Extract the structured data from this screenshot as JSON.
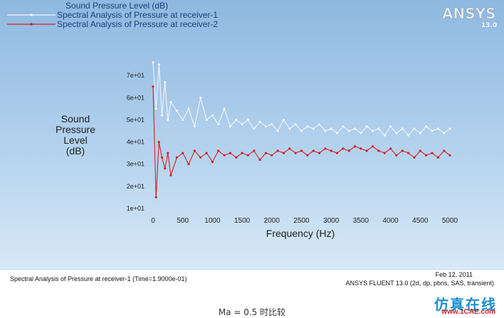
{
  "logo": {
    "brand": "ANSYS",
    "version": "13.0"
  },
  "chart_data": {
    "type": "line",
    "title": "Sound Pressure Level (dB)",
    "xlabel": "Frequency (Hz)",
    "ylabel": "Sound Pressure Level (dB)",
    "xlim": [
      0,
      5000
    ],
    "ylim": [
      10,
      80
    ],
    "xticks": [
      0,
      500,
      1000,
      1500,
      2000,
      2500,
      3000,
      3500,
      4000,
      4500,
      5000
    ],
    "yticks": [
      10,
      20,
      30,
      40,
      50,
      60,
      70
    ],
    "ytick_labels": [
      "1e+01",
      "2e+01",
      "3e+01",
      "4e+01",
      "5e+01",
      "6e+01",
      "7e+01"
    ],
    "legend_position": "top-left",
    "background": "#a6c8e8",
    "series": [
      {
        "name": "Spectral Analysis of Pressure at receiver-1",
        "color": "#f4f4f4",
        "x": [
          0,
          50,
          100,
          150,
          200,
          250,
          300,
          400,
          500,
          600,
          700,
          800,
          900,
          1000,
          1100,
          1200,
          1300,
          1400,
          1500,
          1600,
          1700,
          1800,
          1900,
          2000,
          2100,
          2200,
          2300,
          2400,
          2500,
          2600,
          2700,
          2800,
          2900,
          3000,
          3100,
          3200,
          3300,
          3400,
          3500,
          3600,
          3700,
          3800,
          3900,
          4000,
          4100,
          4200,
          4300,
          4400,
          4500,
          4600,
          4700,
          4800,
          4900,
          5000
        ],
        "values": [
          76,
          55,
          75,
          52,
          67,
          50,
          58,
          54,
          50,
          55,
          47,
          60,
          50,
          52,
          48,
          55,
          47,
          50,
          48,
          50,
          46,
          49,
          47,
          48,
          45,
          50,
          46,
          48,
          45,
          47,
          46,
          48,
          45,
          46,
          44,
          47,
          45,
          46,
          44,
          47,
          45,
          46,
          43,
          47,
          44,
          46,
          43,
          46,
          44,
          47,
          45,
          46,
          44,
          46
        ]
      },
      {
        "name": "Spectral Analysis of Pressure at receiver-2",
        "color": "#d42020",
        "x": [
          0,
          50,
          100,
          150,
          200,
          250,
          300,
          400,
          500,
          600,
          700,
          800,
          900,
          1000,
          1100,
          1200,
          1300,
          1400,
          1500,
          1600,
          1700,
          1800,
          1900,
          2000,
          2100,
          2200,
          2300,
          2400,
          2500,
          2600,
          2700,
          2800,
          2900,
          3000,
          3100,
          3200,
          3300,
          3400,
          3500,
          3600,
          3700,
          3800,
          3900,
          4000,
          4100,
          4200,
          4300,
          4400,
          4500,
          4600,
          4700,
          4800,
          4900,
          5000
        ],
        "values": [
          65,
          15,
          40,
          33,
          28,
          35,
          25,
          33,
          35,
          30,
          36,
          33,
          35,
          31,
          36,
          34,
          35,
          33,
          35,
          34,
          36,
          32,
          35,
          34,
          36,
          35,
          37,
          35,
          36,
          34,
          36,
          35,
          37,
          36,
          35,
          37,
          36,
          38,
          37,
          36,
          38,
          36,
          35,
          37,
          34,
          36,
          35,
          33,
          36,
          34,
          35,
          33,
          36,
          34
        ]
      }
    ]
  },
  "footer": {
    "left": "Spectral Analysis of Pressure at receiver-1  (Time=1.9000e-01)",
    "date": "Feb 12, 2011",
    "solver": "ANSYS FLUENT 13.0 (2d, dp, pbns, SAS, transient)"
  },
  "caption": "Ma = 0.5 时比较",
  "watermark": {
    "text": "仿真在线",
    "url": "www.1CAE.com"
  }
}
